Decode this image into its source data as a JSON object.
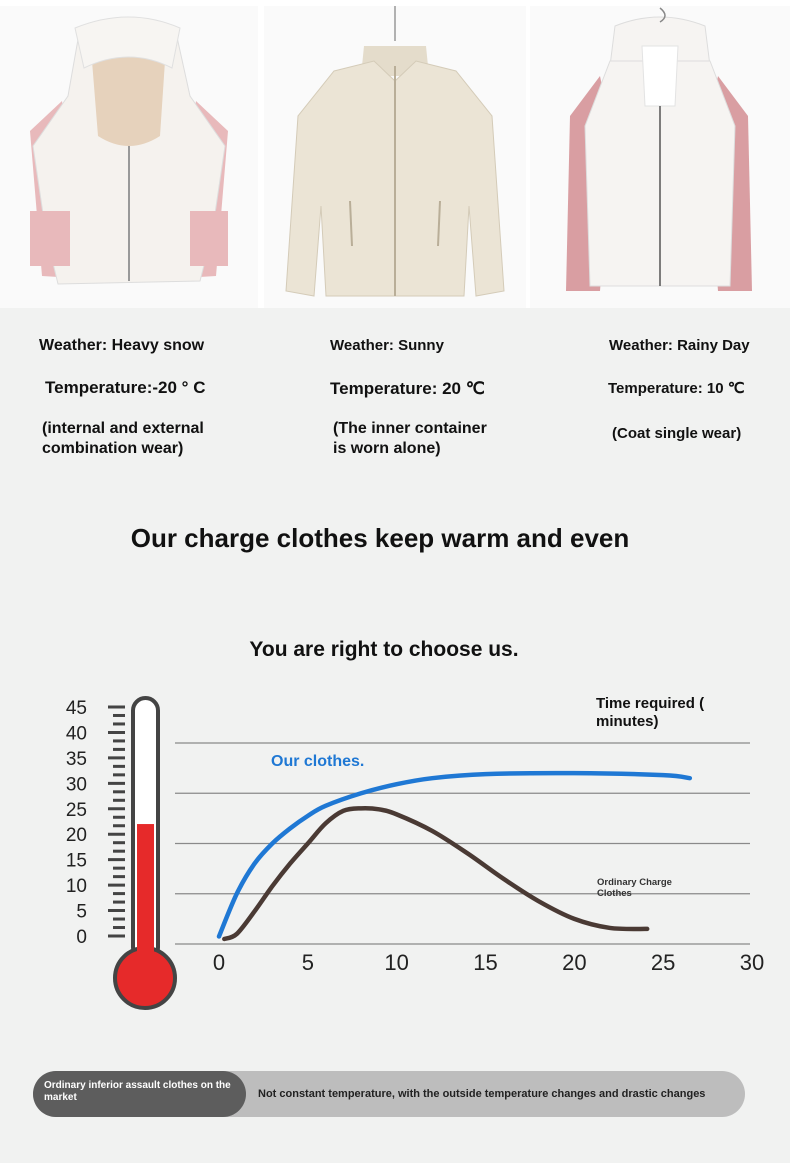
{
  "products": [
    {
      "weather": "Weather: Heavy snow",
      "temperature": "Temperature:-20 ° C",
      "usage_line1": "(internal and external",
      "usage_line2": "combination wear)",
      "colors": {
        "body": "#f5f2ee",
        "accent": "#e8b9bb",
        "lining": "#e6d2bc"
      }
    },
    {
      "weather": "Weather: Sunny",
      "temperature": "Temperature: 20 ℃",
      "usage_line1": "(The inner container",
      "usage_line2": "is worn alone)",
      "colors": {
        "body": "#ebe4d5"
      }
    },
    {
      "weather": "Weather: Rainy Day",
      "temperature": "Temperature: 10 ℃",
      "usage_line1": "(Coat single wear)",
      "usage_line2": "",
      "colors": {
        "body": "#f6f4f2",
        "accent": "#d99ea2"
      }
    }
  ],
  "headline": {
    "line1": "Our charge clothes keep warm and even",
    "line2": "You are right to choose us."
  },
  "chart_data": {
    "type": "line",
    "thermometer_ticks": [
      "45",
      "40",
      "35",
      "30",
      "25",
      "20",
      "15",
      "10",
      "5",
      "0"
    ],
    "thermometer_fill_level": 22,
    "x_ticks": [
      "0",
      "5",
      "10",
      "15",
      "20",
      "25",
      "30"
    ],
    "xlim": [
      0,
      30
    ],
    "ylim": [
      0,
      40
    ],
    "x_axis_label": "Time required ( minutes)",
    "grid": "horizontal",
    "series": [
      {
        "name": "Our clothes.",
        "color": "#1f78d4",
        "x": [
          0,
          1,
          2,
          3,
          4,
          5,
          6,
          8,
          10,
          12,
          15,
          20,
          25,
          26.5
        ],
        "y": [
          1.5,
          10,
          16,
          20,
          23,
          25.5,
          27.5,
          30,
          31.8,
          33,
          33.8,
          34,
          33.6,
          33
        ]
      },
      {
        "name": "Ordinary Charge Clothes",
        "color": "#4a3a34",
        "x": [
          0.3,
          1,
          2,
          3,
          4,
          5,
          6,
          7,
          8,
          9,
          10,
          12,
          14,
          16,
          18,
          20,
          22,
          24.1
        ],
        "y": [
          1,
          2,
          6.5,
          11.5,
          16,
          20,
          24,
          26.5,
          27,
          26.8,
          25.8,
          22.5,
          18,
          13,
          8.5,
          5,
          3.2,
          3
        ]
      }
    ]
  },
  "comparison_bar": {
    "label": "Ordinary inferior assault clothes on the market",
    "description": "Not constant temperature, with the outside temperature changes and drastic changes"
  }
}
